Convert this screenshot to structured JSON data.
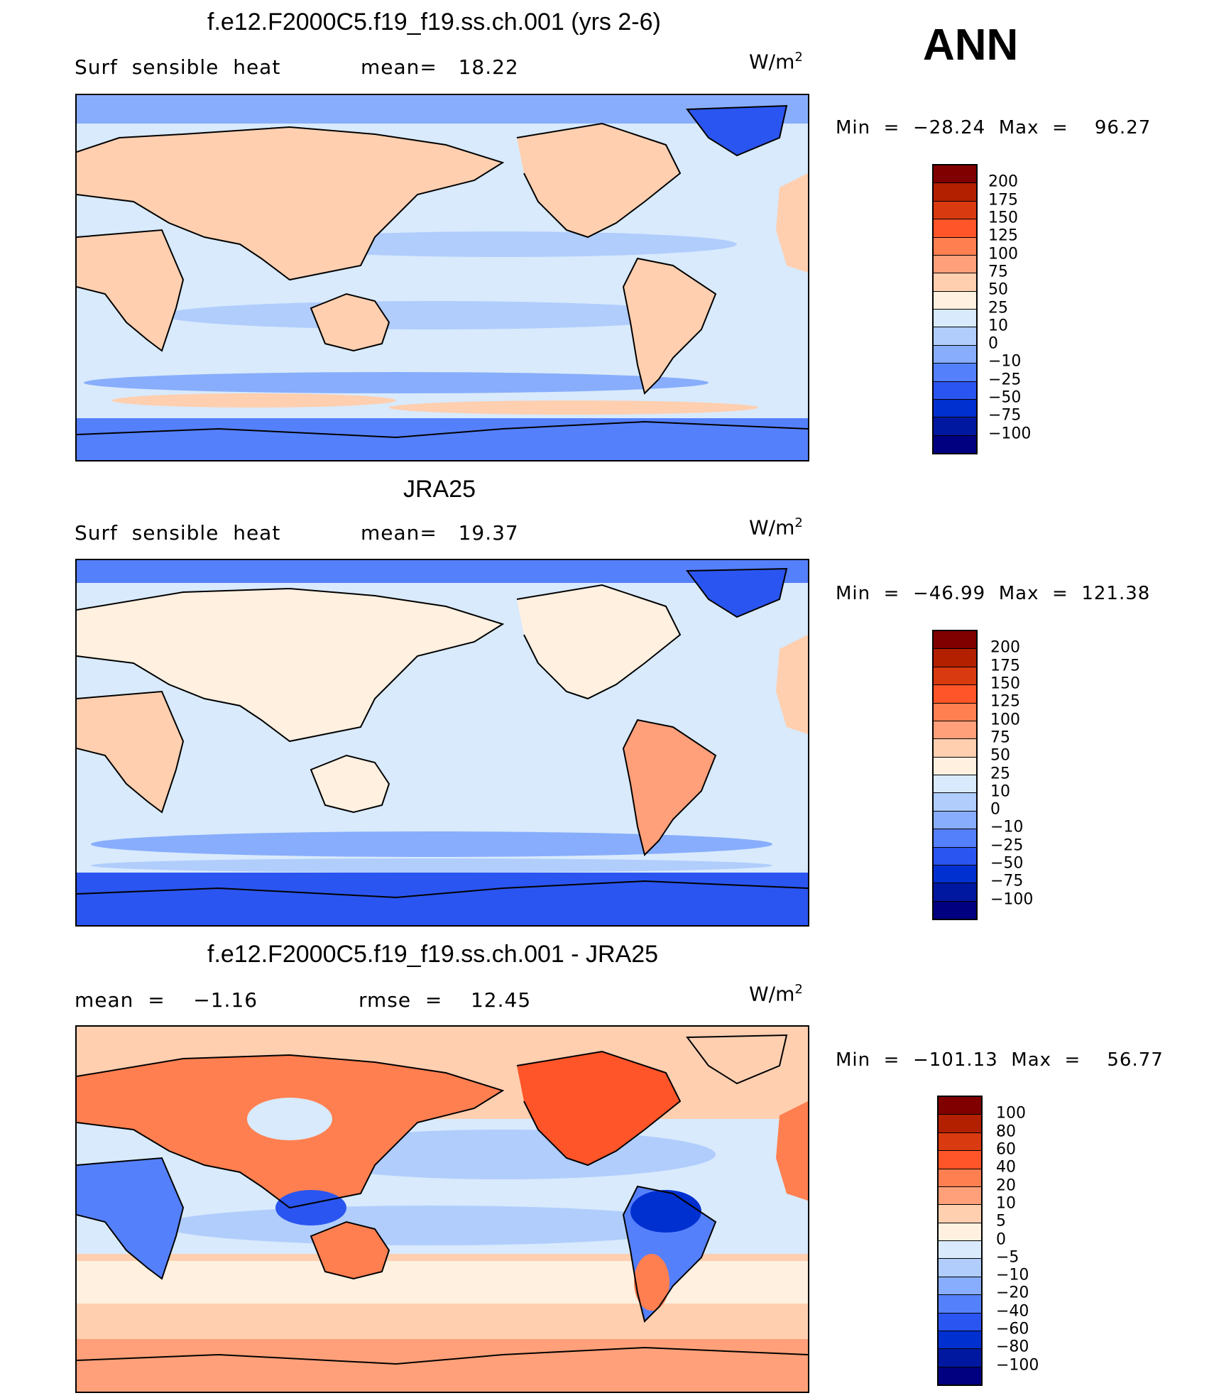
{
  "season": "ANN",
  "panels": [
    {
      "title": "f.e12.F2000C5.f19_f19.ss.ch.001 (yrs 2-6)",
      "left_label": "Surf  sensible  heat",
      "mid_label": "mean=   18.22",
      "units": "W/m",
      "units_sup": "2",
      "minmax": "Min  =  −28.24  Max  =    96.27",
      "colorbar_labels": [
        "200",
        "175",
        "150",
        "125",
        "100",
        "75",
        "50",
        "25",
        "10",
        "0",
        "−10",
        "−25",
        "−50",
        "−75",
        "−100"
      ]
    },
    {
      "title": "JRA25",
      "left_label": "Surf  sensible  heat",
      "mid_label": "mean=   19.37",
      "units": "W/m",
      "units_sup": "2",
      "minmax": "Min  =  −46.99  Max  =  121.38",
      "colorbar_labels": [
        "200",
        "175",
        "150",
        "125",
        "100",
        "75",
        "50",
        "25",
        "10",
        "0",
        "−10",
        "−25",
        "−50",
        "−75",
        "−100"
      ]
    },
    {
      "title": "f.e12.F2000C5.f19_f19.ss.ch.001 - JRA25",
      "left_label": "mean  =    −1.16",
      "mid_label": "rmse  =    12.45",
      "units": "W/m",
      "units_sup": "2",
      "minmax": "Min  =  −101.13  Max  =    56.77",
      "colorbar_labels": [
        "100",
        "80",
        "60",
        "40",
        "20",
        "10",
        "5",
        "0",
        "−5",
        "−10",
        "−20",
        "−40",
        "−60",
        "−80",
        "−100"
      ]
    }
  ],
  "colors": {
    "colorbar_top_to_bottom": [
      "#800000",
      "#b22000",
      "#d93a10",
      "#ff5528",
      "#ff7f50",
      "#ffa07a",
      "#ffcfb0",
      "#fff0e0",
      "#d8eafc",
      "#b0cdfc",
      "#88adfc",
      "#5580fc",
      "#2b55f0",
      "#0030d0",
      "#0018a0",
      "#000080"
    ],
    "map_ocean_cool": "#d8eafc",
    "map_land_warm": "#ffcfb0",
    "coast": "#000000"
  }
}
